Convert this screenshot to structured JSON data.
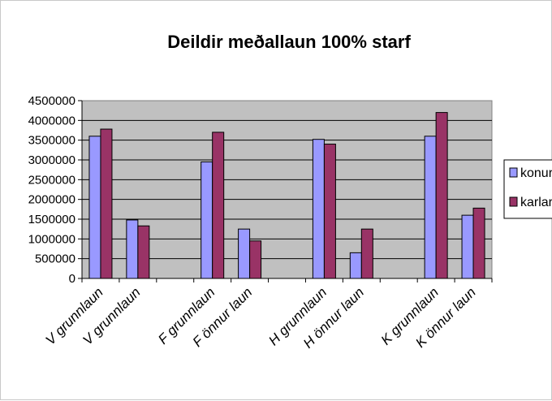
{
  "chart_data": {
    "type": "bar",
    "title": "Deildir meðallaun 100%  starf",
    "categories": [
      "V grunnlaun",
      "V grunnlaun",
      "",
      "F grunnlaun",
      "F önnur laun",
      "",
      "H grunnlaun",
      "H önnur laun",
      "",
      "K grunnlaun",
      "K önnur laun"
    ],
    "series": [
      {
        "name": "konur",
        "color": "#9999ff",
        "values": [
          3600000,
          1480000,
          null,
          2950000,
          1250000,
          null,
          3520000,
          650000,
          null,
          3600000,
          1600000
        ]
      },
      {
        "name": "karlar",
        "color": "#993366",
        "values": [
          3780000,
          1330000,
          null,
          3700000,
          950000,
          null,
          3400000,
          1250000,
          null,
          4200000,
          1780000
        ]
      }
    ],
    "yticks": [
      "4500000",
      "4000000",
      "3500000",
      "3000000",
      "2500000",
      "2000000",
      "1500000",
      "1000000",
      "500000",
      "0"
    ],
    "ylim": [
      0,
      4500000
    ],
    "plot_background": "#c0c0c0",
    "grid": true,
    "legend": "right"
  }
}
